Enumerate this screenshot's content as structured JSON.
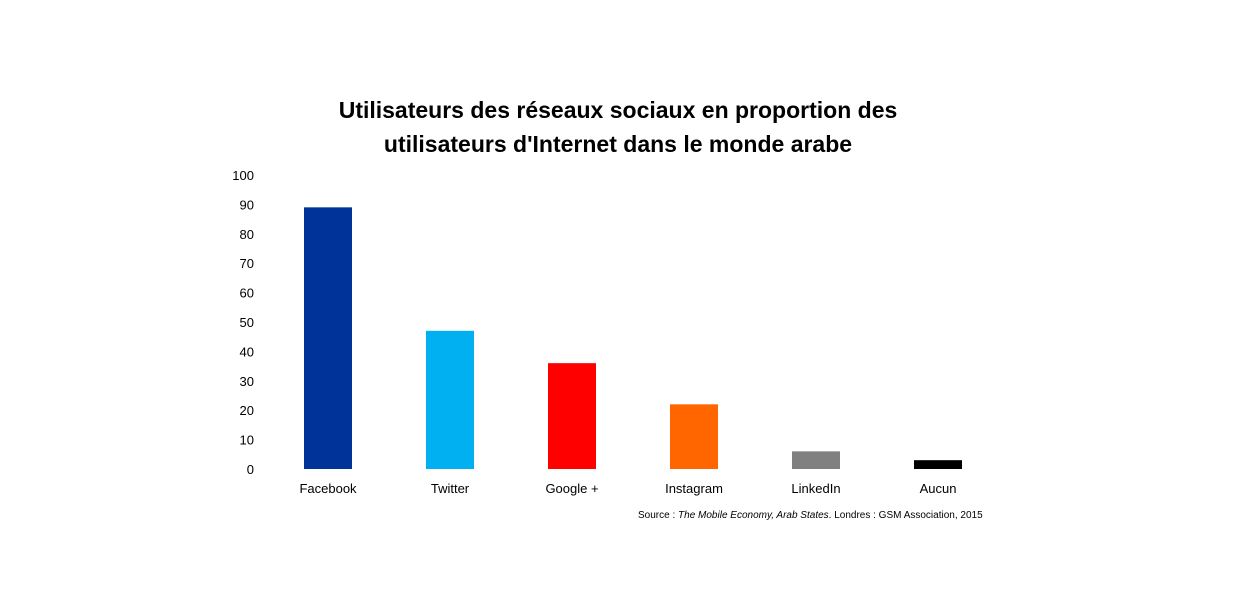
{
  "chart_data": {
    "type": "bar",
    "title": "Utilisateurs des réseaux sociaux en proportion des utilisateurs d'Internet dans le monde arabe",
    "title_lines": [
      "Utilisateurs des réseaux sociaux en proportion des",
      "utilisateurs d'Internet dans le monde arabe"
    ],
    "categories": [
      "Facebook",
      "Twitter",
      "Google +",
      "Instagram",
      "LinkedIn",
      "Aucun"
    ],
    "values": [
      89,
      47,
      36,
      22,
      6,
      3
    ],
    "colors": [
      "#003399",
      "#00b0f0",
      "#ff0000",
      "#ff6600",
      "#808080",
      "#000000"
    ],
    "xlabel": "",
    "ylabel": "",
    "ylim": [
      0,
      100
    ],
    "yticks": [
      0,
      10,
      20,
      30,
      40,
      50,
      60,
      70,
      80,
      90,
      100
    ],
    "grid": false,
    "legend": "none"
  },
  "source": {
    "prefix": "Source : ",
    "italic": "The Mobile Economy, Arab States",
    "suffix": ". Londres : GSM Association, 2015"
  }
}
